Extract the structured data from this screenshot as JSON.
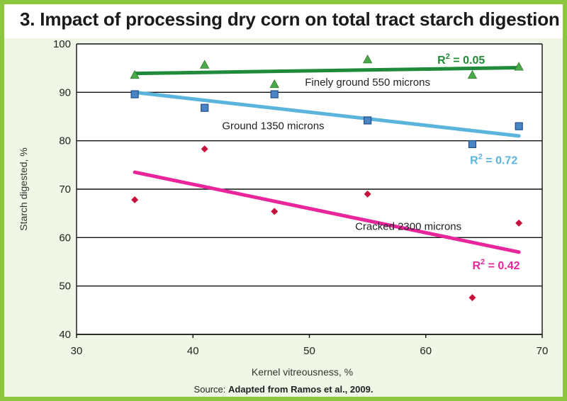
{
  "title": "3. Impact of processing dry corn on total tract starch digestion",
  "source": {
    "prefix": "Source:",
    "text": "Adapted from Ramos et al., 2009."
  },
  "colors": {
    "finely": "#1f8a3a",
    "finely_marker": "#4aaa4a",
    "ground": "#5ab4dc",
    "ground_marker": "#4a86c6",
    "cracked": "#e8259a",
    "cracked_marker": "#c8103c",
    "panel": "#f1f7e6",
    "border": "#8cc63f"
  },
  "chart_data": {
    "type": "scatter",
    "title": "3. Impact of processing dry corn on total tract starch digestion",
    "xlabel": "Kernel vitreousness, %",
    "ylabel": "Starch digested, %",
    "xlim": [
      30,
      70
    ],
    "ylim": [
      40,
      100
    ],
    "xticks": [
      30,
      40,
      50,
      60,
      70
    ],
    "yticks": [
      40,
      50,
      60,
      70,
      80,
      90,
      100
    ],
    "grid": "horizontal",
    "series": [
      {
        "name": "Finely ground 550 microns",
        "marker": "triangle",
        "x": [
          35,
          41,
          47,
          55,
          64,
          68
        ],
        "y": [
          93.6,
          95.7,
          91.7,
          96.8,
          93.6,
          95.3
        ],
        "trend": {
          "x": [
            35,
            68
          ],
          "y": [
            93.9,
            95.1
          ]
        },
        "r2_label": "0.05"
      },
      {
        "name": "Ground 1350 microns",
        "marker": "square",
        "x": [
          35,
          41,
          47,
          55,
          64,
          68
        ],
        "y": [
          89.6,
          86.8,
          89.6,
          84.2,
          79.3,
          83.0
        ],
        "trend": {
          "x": [
            35,
            68
          ],
          "y": [
            90.0,
            81.0
          ]
        },
        "r2_label": "0.72"
      },
      {
        "name": "Cracked 2300 microns",
        "marker": "diamond",
        "x": [
          35,
          41,
          47,
          55,
          64,
          68
        ],
        "y": [
          67.8,
          78.3,
          65.4,
          69.0,
          47.6,
          63.0
        ],
        "trend": {
          "x": [
            35,
            68
          ],
          "y": [
            73.5,
            57.0
          ]
        },
        "r2_label": "0.42"
      }
    ]
  }
}
